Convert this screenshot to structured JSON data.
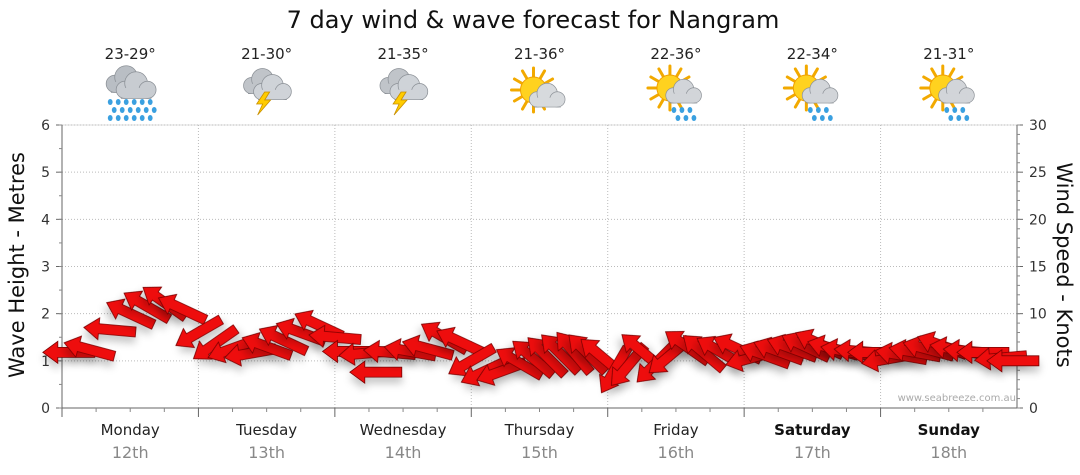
{
  "chart_data": {
    "type": "forecast-wind-wave",
    "title": "7 day wind & wave forecast for Nangram",
    "y_left": {
      "label": "Wave Height - Metres",
      "min": 0,
      "max": 6,
      "ticks": [
        "0",
        "1",
        "2",
        "3",
        "4",
        "5",
        "6"
      ]
    },
    "y_right": {
      "label": "Wind Speed - Knots",
      "min": 0,
      "max": 30,
      "ticks": [
        "0",
        "5",
        "10",
        "15",
        "20",
        "25",
        "30"
      ]
    },
    "days": [
      {
        "day": "Monday",
        "date": "12th",
        "temp": "23-29°",
        "icon": "rain-cloud-icon",
        "bold": false
      },
      {
        "day": "Tuesday",
        "date": "13th",
        "temp": "21-30°",
        "icon": "thunderstorm-icon",
        "bold": false
      },
      {
        "day": "Wednesday",
        "date": "14th",
        "temp": "21-35°",
        "icon": "thunderstorm-icon",
        "bold": false
      },
      {
        "day": "Thursday",
        "date": "15th",
        "temp": "21-36°",
        "icon": "partly-cloudy-icon",
        "bold": false
      },
      {
        "day": "Friday",
        "date": "16th",
        "temp": "22-36°",
        "icon": "sun-showers-icon",
        "bold": false
      },
      {
        "day": "Saturday",
        "date": "17th",
        "temp": "22-34°",
        "icon": "sun-showers-icon",
        "bold": true
      },
      {
        "day": "Sunday",
        "date": "18th",
        "temp": "21-31°",
        "icon": "sun-showers-icon",
        "bold": true
      }
    ],
    "wind_arrows": {
      "color": "#ee1111",
      "points": [
        {
          "t": 0.05,
          "kn": 5.9,
          "dir": 0
        },
        {
          "t": 0.2,
          "kn": 6.2,
          "dir": 15
        },
        {
          "t": 0.35,
          "kn": 8.3,
          "dir": 5
        },
        {
          "t": 0.5,
          "kn": 10.0,
          "dir": 25
        },
        {
          "t": 0.62,
          "kn": 10.8,
          "dir": 30
        },
        {
          "t": 0.75,
          "kn": 11.2,
          "dir": 35
        },
        {
          "t": 0.88,
          "kn": 10.5,
          "dir": 25
        },
        {
          "t": 1.0,
          "kn": 8.0,
          "dir": -30
        },
        {
          "t": 1.12,
          "kn": 6.8,
          "dir": -35
        },
        {
          "t": 1.25,
          "kn": 6.3,
          "dir": -20
        },
        {
          "t": 1.38,
          "kn": 5.8,
          "dir": -10
        },
        {
          "t": 1.5,
          "kn": 6.5,
          "dir": 20
        },
        {
          "t": 1.62,
          "kn": 7.2,
          "dir": 25
        },
        {
          "t": 1.75,
          "kn": 8.0,
          "dir": 20
        },
        {
          "t": 1.88,
          "kn": 8.8,
          "dir": 25
        },
        {
          "t": 2.0,
          "kn": 7.5,
          "dir": 5
        },
        {
          "t": 2.1,
          "kn": 6.0,
          "dir": 0
        },
        {
          "t": 2.22,
          "kn": 5.8,
          "dir": -5
        },
        {
          "t": 2.3,
          "kn": 3.8,
          "dir": 0
        },
        {
          "t": 2.4,
          "kn": 5.9,
          "dir": 5
        },
        {
          "t": 2.55,
          "kn": 6.0,
          "dir": 10
        },
        {
          "t": 2.68,
          "kn": 6.3,
          "dir": 15
        },
        {
          "t": 2.8,
          "kn": 7.5,
          "dir": 30
        },
        {
          "t": 2.92,
          "kn": 7.0,
          "dir": 25
        },
        {
          "t": 3.0,
          "kn": 5.0,
          "dir": -30
        },
        {
          "t": 3.1,
          "kn": 3.9,
          "dir": -25
        },
        {
          "t": 3.22,
          "kn": 3.9,
          "dir": -20
        },
        {
          "t": 3.35,
          "kn": 4.8,
          "dir": 30
        },
        {
          "t": 3.45,
          "kn": 5.3,
          "dir": 40
        },
        {
          "t": 3.55,
          "kn": 5.5,
          "dir": 45
        },
        {
          "t": 3.65,
          "kn": 5.8,
          "dir": 45
        },
        {
          "t": 3.75,
          "kn": 5.9,
          "dir": 50
        },
        {
          "t": 3.85,
          "kn": 5.8,
          "dir": 45
        },
        {
          "t": 3.95,
          "kn": 5.5,
          "dir": 40
        },
        {
          "t": 4.05,
          "kn": 4.0,
          "dir": -60
        },
        {
          "t": 4.15,
          "kn": 4.5,
          "dir": -50
        },
        {
          "t": 4.25,
          "kn": 6.0,
          "dir": 40
        },
        {
          "t": 4.35,
          "kn": 4.7,
          "dir": -45
        },
        {
          "t": 4.45,
          "kn": 5.5,
          "dir": -40
        },
        {
          "t": 4.58,
          "kn": 6.5,
          "dir": 35
        },
        {
          "t": 4.7,
          "kn": 5.9,
          "dir": 40
        },
        {
          "t": 4.82,
          "kn": 6.0,
          "dir": 30
        },
        {
          "t": 4.95,
          "kn": 6.3,
          "dir": 25
        },
        {
          "t": 5.05,
          "kn": 5.3,
          "dir": -15
        },
        {
          "t": 5.15,
          "kn": 5.6,
          "dir": 20
        },
        {
          "t": 5.25,
          "kn": 6.0,
          "dir": 20
        },
        {
          "t": 5.35,
          "kn": 6.3,
          "dir": 20
        },
        {
          "t": 5.45,
          "kn": 6.5,
          "dir": 25
        },
        {
          "t": 5.55,
          "kn": 6.8,
          "dir": 25
        },
        {
          "t": 5.65,
          "kn": 6.3,
          "dir": 15
        },
        {
          "t": 5.75,
          "kn": 6.0,
          "dir": 10
        },
        {
          "t": 5.85,
          "kn": 6.0,
          "dir": 5
        },
        {
          "t": 5.95,
          "kn": 5.9,
          "dir": 0
        },
        {
          "t": 6.05,
          "kn": 5.2,
          "dir": -10
        },
        {
          "t": 6.15,
          "kn": 5.6,
          "dir": 10
        },
        {
          "t": 6.25,
          "kn": 5.9,
          "dir": 10
        },
        {
          "t": 6.35,
          "kn": 6.2,
          "dir": 15
        },
        {
          "t": 6.45,
          "kn": 6.6,
          "dir": 20
        },
        {
          "t": 6.55,
          "kn": 6.2,
          "dir": 10
        },
        {
          "t": 6.65,
          "kn": 6.0,
          "dir": 5
        },
        {
          "t": 6.75,
          "kn": 5.9,
          "dir": 0
        },
        {
          "t": 6.88,
          "kn": 5.3,
          "dir": -5
        },
        {
          "t": 6.97,
          "kn": 5.0,
          "dir": 0
        }
      ]
    },
    "credit": "www.seabreeze.com.au"
  }
}
